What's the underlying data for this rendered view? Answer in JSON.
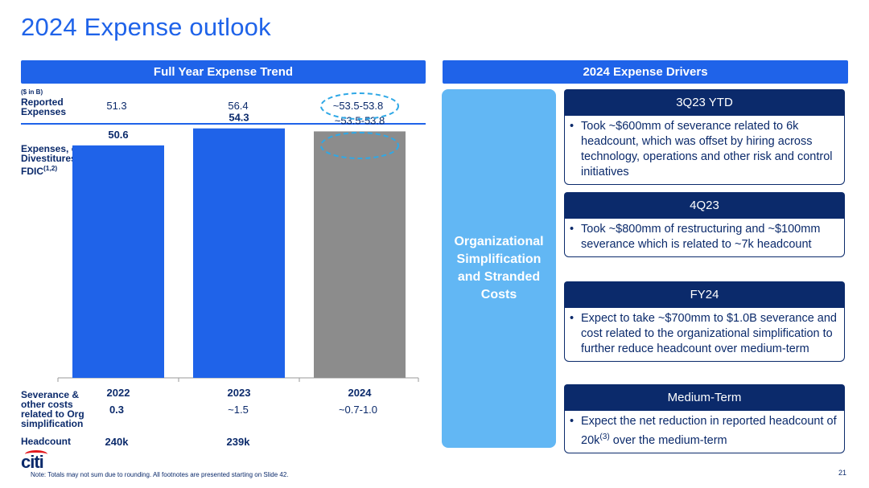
{
  "title": "2024 Expense outlook",
  "left_header": "Full Year Expense Trend",
  "right_header": "2024 Expense Drivers",
  "unit_note": "($ in B)",
  "reported_label": "Reported Expenses",
  "exdiv_label": "Expenses, ex-Divestitures & FDIC",
  "exdiv_sup": "(1,2)",
  "severance_label": "Severance & other costs related to Org simplification",
  "headcount_label": "Headcount",
  "chart_data": {
    "type": "bar",
    "categories": [
      "2022",
      "2023",
      "2024"
    ],
    "values": [
      50.6,
      54.3,
      53.65
    ],
    "value_labels": [
      "50.6",
      "54.3",
      "~53.5-53.8"
    ],
    "bar_colors": [
      "#1f63e9",
      "#1f63e9",
      "#8c8c8c"
    ],
    "reported_expenses": [
      "51.3",
      "56.4",
      "~53.5-53.8"
    ],
    "severance": [
      "0.3",
      "~1.5",
      "~0.7-1.0"
    ],
    "headcount": [
      "240k",
      "239k",
      ""
    ],
    "ylim": [
      0,
      56
    ],
    "title": "",
    "xlabel": "",
    "ylabel": ""
  },
  "driver_category": "Organizational Simplification and Stranded Costs",
  "cards": [
    {
      "head": "3Q23 YTD",
      "body": "Took ~$600mm of severance related to 6k headcount, which was offset by hiring across technology, operations and other risk and control initiatives"
    },
    {
      "head": "4Q23",
      "body": "Took ~$800mm of restructuring and ~$100mm severance  which is related to ~7k headcount"
    },
    {
      "head": "FY24",
      "body": "Expect to take ~$700mm to $1.0B severance and cost related to the organizational simplification to further reduce headcount over medium-term"
    },
    {
      "head": "Medium-Term",
      "body_pre": "Expect the net reduction in reported headcount of 20k",
      "body_sup": "(3)",
      "body_post": " over the medium-term"
    }
  ],
  "footnote": "Note:  Totals may not sum due to rounding. All footnotes are presented starting on Slide 42.",
  "page_number": "21",
  "logo_text": "citi",
  "colors": {
    "brand_blue": "#1f63e9",
    "navy": "#0b2a6b",
    "light_blue": "#62b7f4",
    "gray_bar": "#8c8c8c",
    "logo_red": "#e3191e"
  }
}
